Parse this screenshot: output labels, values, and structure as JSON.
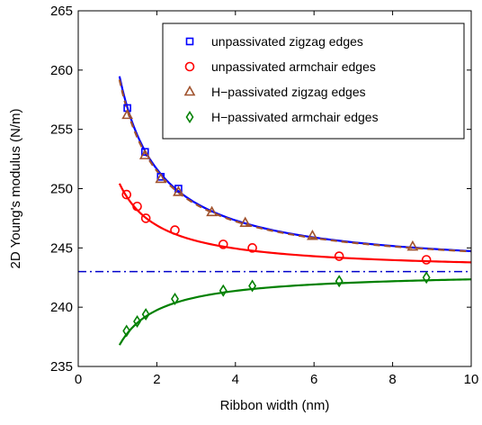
{
  "chart_data": {
    "type": "scatter",
    "xlabel": "Ribbon width (nm)",
    "ylabel": "2D Young's modulus (N/m)",
    "xlim": [
      0,
      10
    ],
    "ylim": [
      235,
      265
    ],
    "xticks": [
      0,
      2,
      4,
      6,
      8,
      10
    ],
    "yticks": [
      235,
      240,
      245,
      250,
      255,
      260,
      265
    ],
    "grid": false,
    "legend_position": "top-right",
    "reference_line": {
      "y": 243,
      "style": "dash-dot",
      "color": "#0000cc"
    },
    "series": [
      {
        "name": "unpassivated zigzag edges",
        "marker": "square",
        "color": "#0000ff",
        "x": [
          1.25,
          1.7,
          2.1,
          2.55
        ],
        "y": [
          256.8,
          253.1,
          251.0,
          250.0
        ]
      },
      {
        "name": "unpassivated armchair edges",
        "marker": "circle",
        "color": "#ff0000",
        "x": [
          1.23,
          1.5,
          1.72,
          2.46,
          3.69,
          4.43,
          6.64,
          8.86
        ],
        "y": [
          249.5,
          248.5,
          247.5,
          246.5,
          245.3,
          245.0,
          244.3,
          244.0
        ]
      },
      {
        "name": "H−passivated zigzag edges",
        "marker": "triangle",
        "color": "#a0522d",
        "x": [
          1.25,
          1.7,
          2.1,
          2.55,
          3.4,
          4.25,
          5.96,
          8.51
        ],
        "y": [
          256.2,
          252.8,
          250.8,
          249.7,
          248.0,
          247.1,
          246.0,
          245.1
        ]
      },
      {
        "name": "H−passivated armchair edges",
        "marker": "diamond",
        "color": "#008000",
        "x": [
          1.23,
          1.5,
          1.72,
          2.46,
          3.69,
          4.43,
          6.64,
          8.86
        ],
        "y": [
          238.0,
          238.8,
          239.4,
          240.7,
          241.4,
          241.8,
          242.2,
          242.5
        ]
      }
    ],
    "fit_curves": [
      {
        "series": 0,
        "color": "#0000ff",
        "style": "solid",
        "c0": 243.0,
        "c1": 17.3,
        "xrange": [
          1.05,
          10
        ]
      },
      {
        "series": 1,
        "color": "#ff0000",
        "style": "solid",
        "c0": 243.0,
        "c1": 7.8,
        "xrange": [
          1.05,
          10
        ]
      },
      {
        "series": 2,
        "color": "#a0522d",
        "style": "dashed",
        "c0": 243.0,
        "c1": 17.0,
        "xrange": [
          1.05,
          10
        ]
      },
      {
        "series": 3,
        "color": "#008000",
        "style": "solid",
        "c0": 243.0,
        "c1": -6.5,
        "xrange": [
          1.05,
          10
        ]
      }
    ]
  }
}
